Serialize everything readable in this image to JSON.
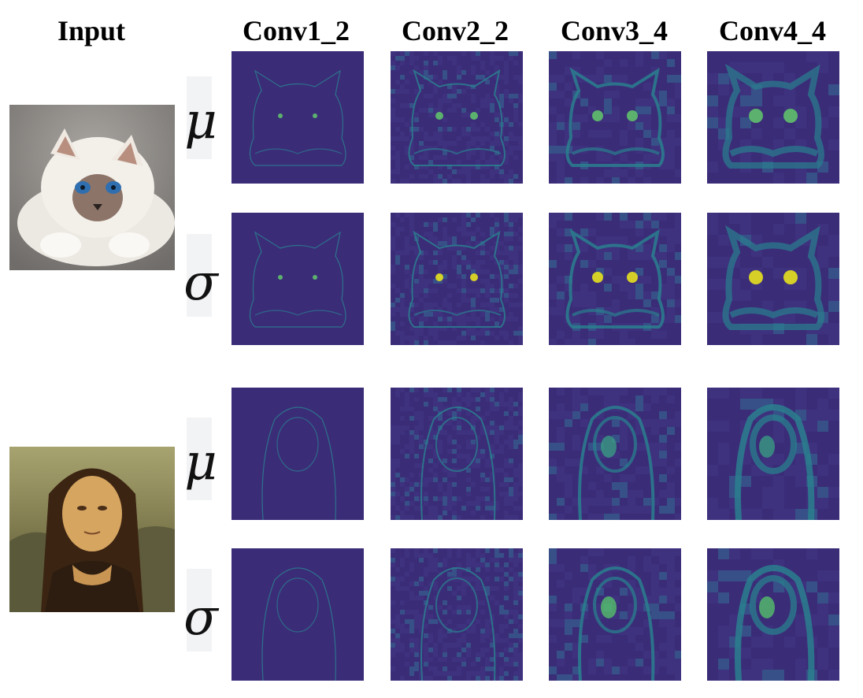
{
  "header": {
    "input": "Input",
    "layers": [
      "Conv1_2",
      "Conv2_2",
      "Conv3_4",
      "Conv4_4"
    ]
  },
  "symbols": {
    "mean": "μ",
    "std": "σ"
  },
  "colormap": {
    "low": "#3b2c78",
    "mid": "#2a7f8e",
    "high": "#e6e11f"
  },
  "rows": [
    {
      "subject": "cat",
      "stat": "mean"
    },
    {
      "subject": "cat",
      "stat": "std"
    },
    {
      "subject": "mona-lisa",
      "stat": "mean"
    },
    {
      "subject": "mona-lisa",
      "stat": "std"
    }
  ]
}
